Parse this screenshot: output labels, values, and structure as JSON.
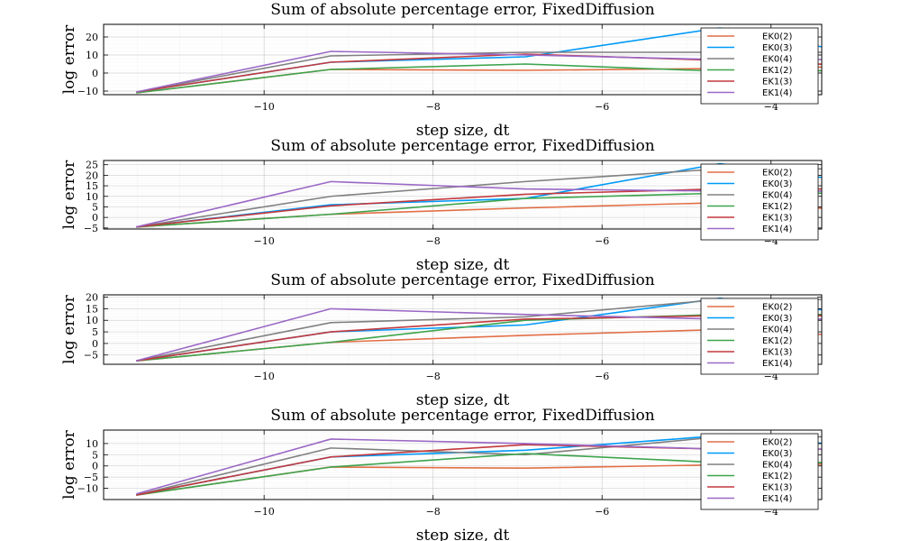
{
  "colors": [
    "#e26f46",
    "#009af9",
    "#808080",
    "#3da44d",
    "#c2393d",
    "#9b68c6"
  ],
  "chart_data": [
    {
      "type": "line",
      "title": "Sum of absolute percentage error, FixedDiffusion",
      "xlabel": "step size, dt",
      "ylabel": "log error",
      "xlim": [
        -11.9,
        -3.4
      ],
      "ylim": [
        -12,
        27
      ],
      "xticks": [
        -10,
        -8,
        -6,
        -4
      ],
      "xtick_labels": [
        "−10",
        "−8",
        "−6",
        "−4"
      ],
      "yticks": [
        -10,
        0,
        10,
        20
      ],
      "ytick_labels": [
        "−10",
        "0",
        "10",
        "20"
      ],
      "grid": true,
      "legend": "right",
      "x": [
        -11.5129,
        -9.2103,
        -6.9078,
        -4.6052,
        -2.3026
      ],
      "series": [
        {
          "name": "EK0(2)",
          "values": [
            -11,
            2,
            1.5,
            2.5,
            4
          ]
        },
        {
          "name": "EK0(3)",
          "values": [
            -10.5,
            6,
            9,
            25,
            5
          ]
        },
        {
          "name": "EK0(4)",
          "values": [
            -10.5,
            9.5,
            11.5,
            11.5,
            11.5
          ]
        },
        {
          "name": "EK1(2)",
          "values": [
            -11,
            2,
            5,
            1,
            1.5
          ]
        },
        {
          "name": "EK1(3)",
          "values": [
            -10.5,
            6,
            10.5,
            7,
            3
          ]
        },
        {
          "name": "EK1(4)",
          "values": [
            -10.5,
            12,
            10,
            7.5,
            7.5
          ]
        }
      ]
    },
    {
      "type": "line",
      "title": "Sum of absolute percentage error, FixedDiffusion",
      "xlabel": "step size, dt",
      "ylabel": "log error",
      "xlim": [
        -11.9,
        -3.4
      ],
      "ylim": [
        -5.5,
        27
      ],
      "xticks": [
        -10,
        -8,
        -6,
        -4
      ],
      "xtick_labels": [
        "−10",
        "−8",
        "−6",
        "−4"
      ],
      "yticks": [
        -5,
        0,
        5,
        10,
        15,
        20,
        25
      ],
      "ytick_labels": [
        "−5",
        "0",
        "5",
        "10",
        "15",
        "20",
        "25"
      ],
      "grid": true,
      "legend": "right",
      "x": [
        -11.5129,
        -9.2103,
        -6.9078,
        -4.6052,
        -2.3026
      ],
      "series": [
        {
          "name": "EK0(2)",
          "values": [
            -4.5,
            1.5,
            4.5,
            7,
            2
          ]
        },
        {
          "name": "EK0(3)",
          "values": [
            -4.5,
            6,
            9,
            25.5,
            13
          ]
        },
        {
          "name": "EK0(4)",
          "values": [
            -4.5,
            10,
            17,
            23,
            23
          ]
        },
        {
          "name": "EK1(2)",
          "values": [
            -4.5,
            1.5,
            9,
            11.5,
            11.5
          ]
        },
        {
          "name": "EK1(3)",
          "values": [
            -4.5,
            5.5,
            11,
            13.5,
            13.5
          ]
        },
        {
          "name": "EK1(4)",
          "values": [
            -4.5,
            17,
            13.5,
            12.5,
            12.5
          ]
        }
      ]
    },
    {
      "type": "line",
      "title": "Sum of absolute percentage error, FixedDiffusion",
      "xlabel": "step size, dt",
      "ylabel": "log error",
      "xlim": [
        -11.9,
        -3.4
      ],
      "ylim": [
        -9,
        21
      ],
      "xticks": [
        -10,
        -8,
        -6,
        -4
      ],
      "xtick_labels": [
        "−10",
        "−8",
        "−6",
        "−4"
      ],
      "yticks": [
        -5,
        0,
        5,
        10,
        15,
        20
      ],
      "ytick_labels": [
        "−5",
        "0",
        "5",
        "10",
        "15",
        "20"
      ],
      "grid": true,
      "legend": "right",
      "x": [
        -11.5129,
        -9.2103,
        -6.9078,
        -4.6052,
        -2.3026
      ],
      "series": [
        {
          "name": "EK0(2)",
          "values": [
            -7.5,
            0.5,
            3.5,
            6,
            2
          ]
        },
        {
          "name": "EK0(3)",
          "values": [
            -7.5,
            5,
            8,
            19.5,
            10
          ]
        },
        {
          "name": "EK0(4)",
          "values": [
            -7.5,
            9,
            11.5,
            19,
            19
          ]
        },
        {
          "name": "EK1(2)",
          "values": [
            -7.5,
            0.5,
            10,
            12.5,
            12.5
          ]
        },
        {
          "name": "EK1(3)",
          "values": [
            -7.5,
            5,
            10.5,
            12,
            12
          ]
        },
        {
          "name": "EK1(4)",
          "values": [
            -7.5,
            15,
            12.5,
            10.5,
            10.5
          ]
        }
      ]
    },
    {
      "type": "line",
      "title": "Sum of absolute percentage error, FixedDiffusion",
      "xlabel": "step size, dt",
      "ylabel": "log error",
      "xlim": [
        -11.9,
        -3.4
      ],
      "ylim": [
        -15,
        16
      ],
      "xticks": [
        -10,
        -8,
        -6,
        -4
      ],
      "xtick_labels": [
        "−10",
        "−8",
        "−6",
        "−4"
      ],
      "yticks": [
        -10,
        -5,
        0,
        5,
        10
      ],
      "ytick_labels": [
        "−10",
        "−5",
        "0",
        "5",
        "10"
      ],
      "grid": true,
      "legend": "right",
      "x": [
        -11.5129,
        -9.2103,
        -6.9078,
        -4.6052,
        -2.3026
      ],
      "series": [
        {
          "name": "EK0(2)",
          "values": [
            -13,
            -0.5,
            -1,
            0.5,
            1
          ]
        },
        {
          "name": "EK0(3)",
          "values": [
            -13,
            4,
            7,
            13.5,
            7
          ]
        },
        {
          "name": "EK0(4)",
          "values": [
            -13,
            8,
            5,
            13,
            13
          ]
        },
        {
          "name": "EK1(2)",
          "values": [
            -13,
            -0.5,
            5.5,
            1.5,
            1.5
          ]
        },
        {
          "name": "EK1(3)",
          "values": [
            -13,
            4,
            9.5,
            7.5,
            7.5
          ]
        },
        {
          "name": "EK1(4)",
          "values": [
            -12.5,
            12,
            10,
            7.5,
            7.5
          ]
        }
      ]
    }
  ]
}
